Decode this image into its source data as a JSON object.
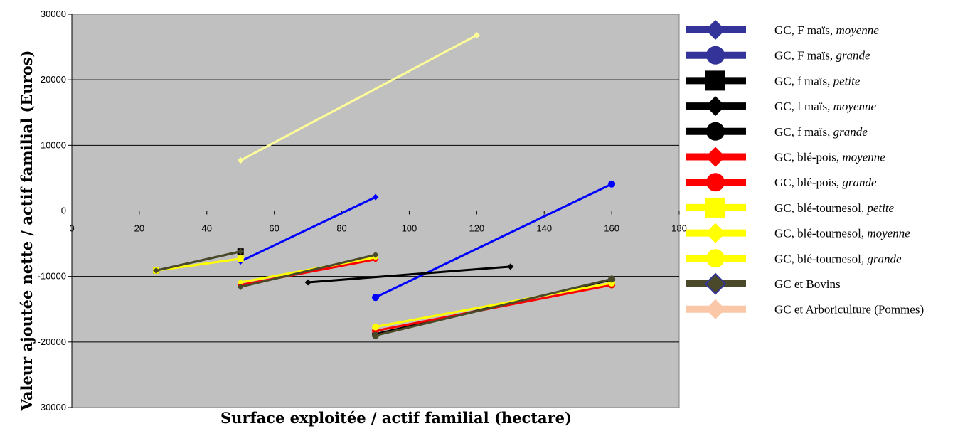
{
  "chart_data": {
    "type": "line",
    "title": "",
    "xlabel": "Surface exploitée / actif familial (hectare)",
    "ylabel": "Valeur ajoutée nette / actif familial (Euros)",
    "xlim": [
      0,
      180
    ],
    "ylim": [
      -30000,
      30000
    ],
    "xticks": [
      "0",
      "20",
      "40",
      "60",
      "80",
      "100",
      "120",
      "140",
      "160",
      "180"
    ],
    "yticks": [
      "30000",
      "20000",
      "10000",
      "0",
      "-10000",
      "-20000",
      "-30000"
    ],
    "grid": "horizontal",
    "plot_background": "#C0C0C0",
    "legend_position": "right",
    "series": [
      {
        "legend_id": 0,
        "color": "#0000FF",
        "marker": "diamond",
        "points": [
          [
            50,
            -7700
          ],
          [
            90,
            2100
          ]
        ]
      },
      {
        "legend_id": 1,
        "color": "#0000FF",
        "marker": "circle",
        "points": [
          [
            90,
            -13200
          ],
          [
            160,
            4100
          ]
        ]
      },
      {
        "legend_id": 2,
        "color": "#000000",
        "marker": "square",
        "points": [
          [
            25,
            -9100
          ],
          [
            50,
            -6200
          ]
        ]
      },
      {
        "legend_id": 3,
        "color": "#000000",
        "marker": "diamond",
        "points": [
          [
            70,
            -10900
          ],
          [
            130,
            -8500
          ]
        ]
      },
      {
        "legend_id": 4,
        "color": "#000000",
        "marker": "circle",
        "points": [
          [
            90,
            -18800
          ],
          [
            160,
            -10500
          ]
        ]
      },
      {
        "legend_id": 5,
        "color": "#FF0000",
        "marker": "diamond",
        "points": [
          [
            50,
            -11300
          ],
          [
            90,
            -7400
          ]
        ]
      },
      {
        "legend_id": 6,
        "color": "#FF0000",
        "marker": "circle",
        "points": [
          [
            90,
            -18300
          ],
          [
            160,
            -11300
          ]
        ]
      },
      {
        "legend_id": 7,
        "color": "#FFFF00",
        "marker": "square",
        "points": [
          [
            25,
            -9100
          ],
          [
            50,
            -7300
          ]
        ]
      },
      {
        "legend_id": 8,
        "color": "#FFFF00",
        "marker": "diamond",
        "points": [
          [
            50,
            -10900
          ],
          [
            90,
            -7100
          ]
        ]
      },
      {
        "legend_id": 9,
        "color": "#FFFF00",
        "marker": "circle",
        "points": [
          [
            90,
            -17700
          ],
          [
            160,
            -11000
          ]
        ]
      },
      {
        "legend_id": 10,
        "color": "#4A4A2A",
        "marker": "diamond",
        "points": [
          [
            25,
            -9100
          ],
          [
            50,
            -6200
          ]
        ]
      },
      {
        "legend_id": 10,
        "color": "#4A4A2A",
        "marker": "diamond",
        "points": [
          [
            50,
            -11600
          ],
          [
            90,
            -6700
          ]
        ]
      },
      {
        "legend_id": 10,
        "color": "#4A4A2A",
        "marker": "circle",
        "points": [
          [
            90,
            -19000
          ],
          [
            160,
            -10400
          ]
        ]
      },
      {
        "legend_id": 8,
        "color": "#FFFF99",
        "marker": "diamond",
        "points": [
          [
            50,
            7700
          ],
          [
            120,
            26800
          ]
        ]
      }
    ],
    "legend": [
      {
        "base": "GC, F maïs, ",
        "italic": "moyenne",
        "color": "#333399",
        "marker": "diamond",
        "stroke": ""
      },
      {
        "base": "GC, F maïs, ",
        "italic": "grande",
        "color": "#333399",
        "marker": "circle",
        "stroke": ""
      },
      {
        "base": "GC, f maïs, ",
        "italic": "petite",
        "color": "#000000",
        "marker": "square",
        "stroke": ""
      },
      {
        "base": "GC, f maïs, ",
        "italic": "moyenne",
        "color": "#000000",
        "marker": "diamond",
        "stroke": ""
      },
      {
        "base": "GC, f maïs, ",
        "italic": "grande",
        "color": "#000000",
        "marker": "circle",
        "stroke": ""
      },
      {
        "base": "GC, blé-pois, ",
        "italic": "moyenne",
        "color": "#FF0000",
        "marker": "diamond",
        "stroke": ""
      },
      {
        "base": "GC, blé-pois, ",
        "italic": "grande",
        "color": "#FF0000",
        "marker": "circle",
        "stroke": ""
      },
      {
        "base": "GC, blé-tournesol, ",
        "italic": "petite",
        "color": "#FFFF00",
        "marker": "square",
        "stroke": ""
      },
      {
        "base": "GC, blé-tournesol, ",
        "italic": "moyenne",
        "color": "#FFFF00",
        "marker": "diamond",
        "stroke": ""
      },
      {
        "base": "GC, blé-tournesol, ",
        "italic": "grande",
        "color": "#FFFF00",
        "marker": "circle",
        "stroke": ""
      },
      {
        "base": "GC et Bovins",
        "italic": "",
        "color": "#4A4A2A",
        "marker": "diamond",
        "stroke": "#333399"
      },
      {
        "base": "GC et Arboriculture (Pommes)",
        "italic": "",
        "color": "#FAC8A8",
        "marker": "diamond",
        "stroke": ""
      }
    ]
  }
}
